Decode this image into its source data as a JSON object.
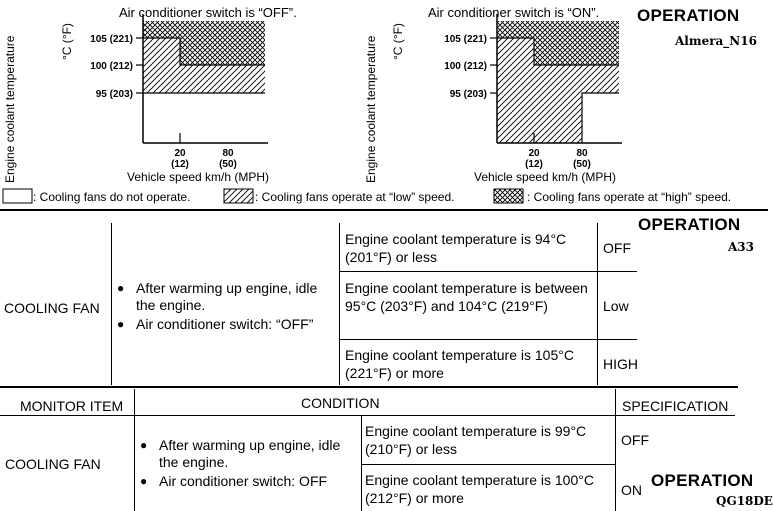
{
  "diagram": {
    "chart_off_title": "Air conditioner switch is “OFF”.",
    "chart_on_title": "Air conditioner switch is “ON”.",
    "y_axis_label": "Engine coolant temperature",
    "y_axis_unit": "°C (°F)",
    "x_axis_label": "Vehicle speed km/h (MPH)",
    "off_y_ticks": [
      "105 (221)",
      "100 (212)",
      "95 (203)"
    ],
    "on_y_ticks": [
      "105 (221)",
      "100 (212)",
      "95 (203)"
    ],
    "x_ticks": [
      {
        "top": "20",
        "bottom": "(12)"
      },
      {
        "top": "80",
        "bottom": "(50)"
      }
    ],
    "legend_none": ": Cooling fans do not operate.",
    "legend_low": ": Cooling fans operate at “low” speed.",
    "legend_high": ": Cooling fans operate at “high” speed."
  },
  "headings": {
    "operation": "OPERATION",
    "model_almera": "Almera_N16",
    "model_a33": "A33",
    "model_qg18de": "QG18DE"
  },
  "table_a33": {
    "item": "COOLING FAN",
    "conditions": [
      "After warming up engine, idle the engine.",
      "Air conditioner switch: “OFF”"
    ],
    "rows": [
      {
        "temp": "Engine coolant temperature is 94°C (201°F) or less",
        "spec": "OFF"
      },
      {
        "temp": "Engine coolant temperature is between 95°C (203°F) and 104°C (219°F)",
        "spec": "Low"
      },
      {
        "temp": "Engine coolant temperature is 105°C (221°F) or more",
        "spec": "HIGH"
      }
    ]
  },
  "table_qg": {
    "headers": {
      "item": "MONITOR ITEM",
      "condition": "CONDITION",
      "spec": "SPECIFICATION"
    },
    "item": "COOLING FAN",
    "conditions": [
      "After warming up engine, idle the engine.",
      "Air conditioner switch: OFF"
    ],
    "rows": [
      {
        "temp": "Engine coolant temperature is 99°C (210°F) or less",
        "spec": "OFF"
      },
      {
        "temp": "Engine coolant temperature is 100°C (212°F) or more",
        "spec": "ON"
      }
    ]
  }
}
